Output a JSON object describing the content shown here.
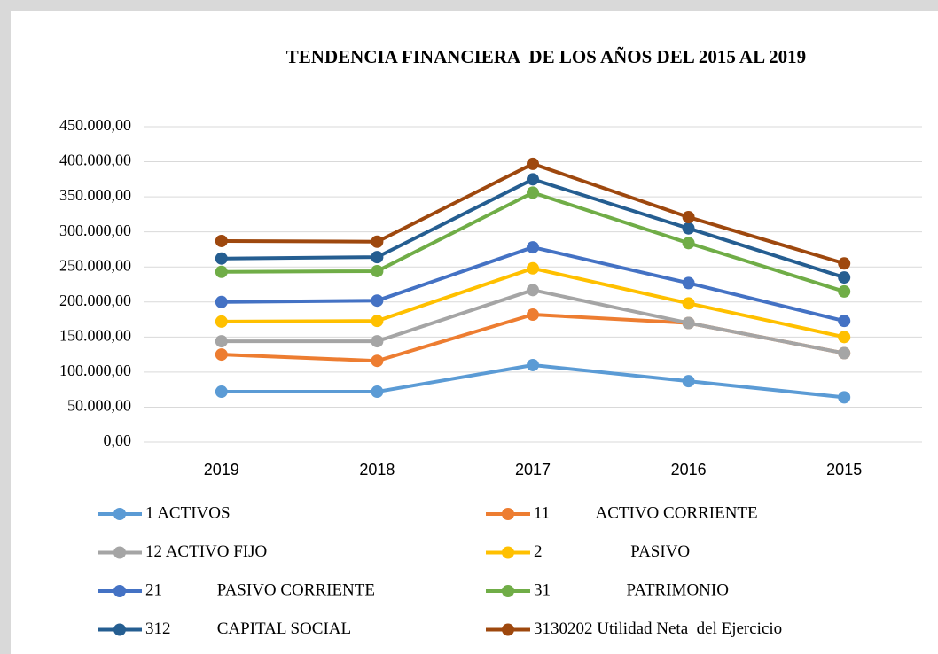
{
  "chart_data": {
    "type": "line",
    "title": "TENDENCIA FINANCIERA  DE LOS AÑOS DEL 2015 AL 2019",
    "categories": [
      "2019",
      "2018",
      "2017",
      "2016",
      "2015"
    ],
    "ylim": [
      0,
      450000
    ],
    "yticks": [
      {
        "value": 0,
        "label": "0,00"
      },
      {
        "value": 50000,
        "label": "50.000,00"
      },
      {
        "value": 100000,
        "label": "100.000,00"
      },
      {
        "value": 150000,
        "label": "150.000,00"
      },
      {
        "value": 200000,
        "label": "200.000,00"
      },
      {
        "value": 250000,
        "label": "250.000,00"
      },
      {
        "value": 300000,
        "label": "300.000,00"
      },
      {
        "value": 350000,
        "label": "350.000,00"
      },
      {
        "value": 400000,
        "label": "400.000,00"
      },
      {
        "value": 450000,
        "label": "450.000,00"
      }
    ],
    "grid": true,
    "legend": "bottom",
    "series": [
      {
        "name": "1 ACTIVOS",
        "color": "#5b9bd5",
        "values": [
          72000,
          72000,
          110000,
          87000,
          64000
        ]
      },
      {
        "name": "11           ACTIVO CORRIENTE",
        "color": "#ed7d31",
        "values": [
          125000,
          116000,
          182000,
          170000,
          127000
        ]
      },
      {
        "name": "12 ACTIVO FIJO",
        "color": "#a5a5a5",
        "values": [
          144000,
          144000,
          217000,
          170000,
          127000
        ]
      },
      {
        "name": "2                     PASIVO",
        "color": "#ffc000",
        "values": [
          172000,
          173000,
          248000,
          198000,
          150000
        ]
      },
      {
        "name": "21             PASIVO CORRIENTE",
        "color": "#4472c4",
        "values": [
          200000,
          202000,
          278000,
          227000,
          173000
        ]
      },
      {
        "name": "31                  PATRIMONIO",
        "color": "#70ad47",
        "values": [
          243000,
          244000,
          356000,
          284000,
          215000
        ]
      },
      {
        "name": "312           CAPITAL SOCIAL",
        "color": "#255e91",
        "values": [
          262000,
          264000,
          375000,
          305000,
          235000
        ]
      },
      {
        "name": "3130202 Utilidad Neta  del Ejercicio",
        "color": "#9e480e",
        "values": [
          287000,
          286000,
          397000,
          321000,
          255000
        ]
      }
    ]
  }
}
